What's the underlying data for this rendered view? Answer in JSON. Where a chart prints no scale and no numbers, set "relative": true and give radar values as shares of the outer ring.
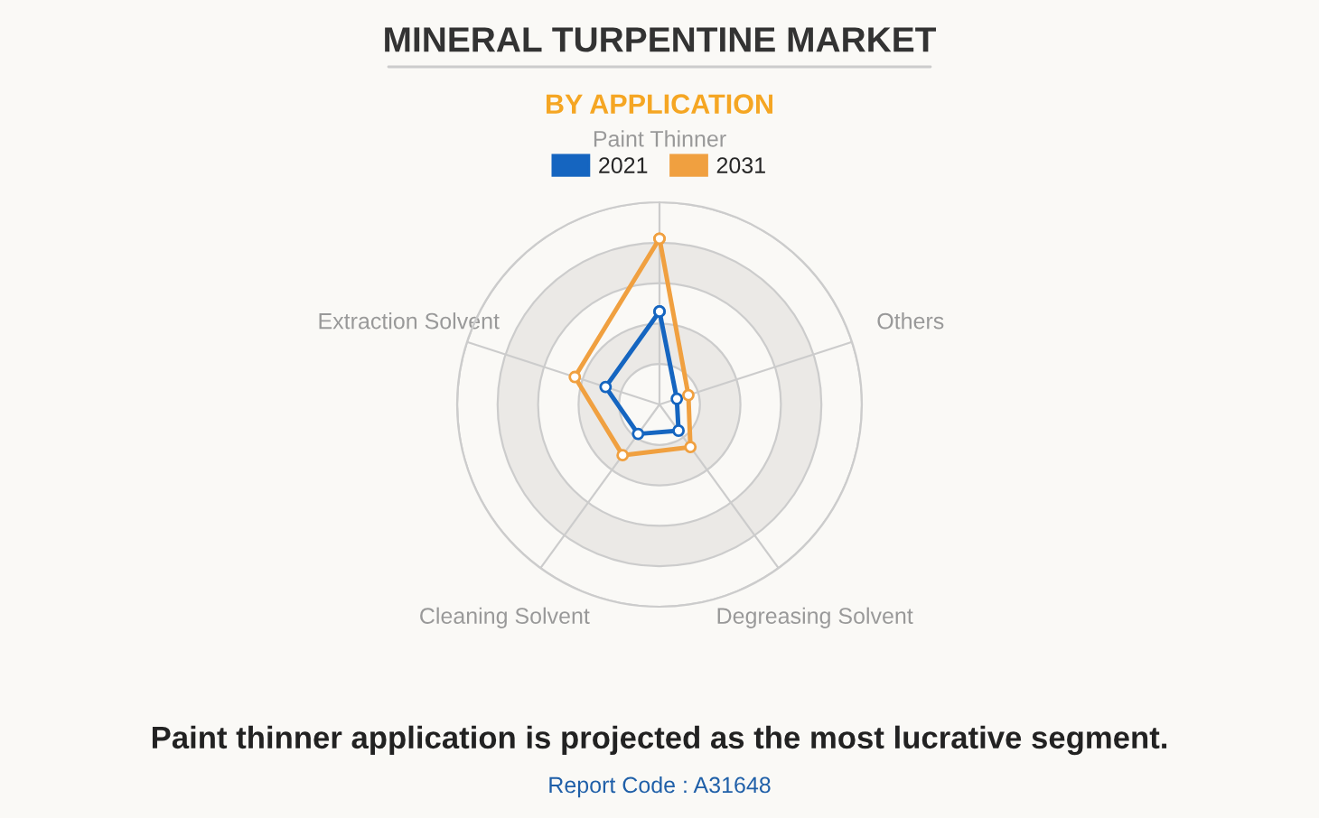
{
  "chart_data": {
    "type": "radar",
    "title": "MINERAL TURPENTINE MARKET",
    "subtitle": "BY APPLICATION",
    "categories": [
      "Paint Thinner",
      "Others",
      "Degreasing Solvent",
      "Cleaning Solvent",
      "Extraction Solvent"
    ],
    "relative": true,
    "grid": true,
    "legend": "top",
    "marker": "circle",
    "series": [
      {
        "name": "2021",
        "color": "#1565c0",
        "values": [
          0.46,
          0.09,
          0.16,
          0.18,
          0.28
        ]
      },
      {
        "name": "2031",
        "color": "#f0a040",
        "values": [
          0.82,
          0.15,
          0.26,
          0.31,
          0.44
        ]
      }
    ],
    "annotations": [
      "Paint thinner application is projected as the most lucrative segment.",
      "Report Code : A31648"
    ]
  }
}
